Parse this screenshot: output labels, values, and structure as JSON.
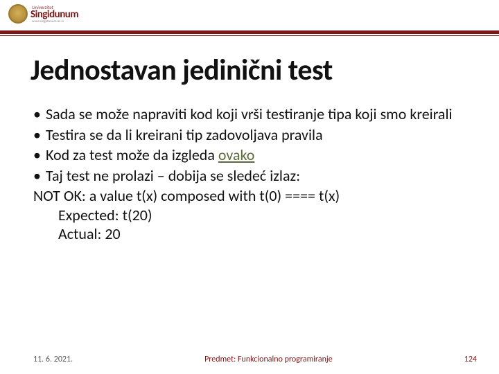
{
  "logo": {
    "university": "Univerzitet",
    "name": "Singidunum",
    "url": "www.singidunum.ac.rs"
  },
  "title": "Jednostavan jedinični test",
  "bullets": [
    {
      "text": "Sada se može napraviti kod koji vrši testiranje tipa koji smo kreirali",
      "hasLink": false
    },
    {
      "text": "Testira se da li kreirani tip zadovoljava pravila",
      "hasLink": false
    },
    {
      "textBefore": "Kod za test može da izgleda ",
      "linkText": "ovako",
      "textAfter": "",
      "hasLink": true
    },
    {
      "text": "Taj test ne prolazi – dobija se sledeć izlaz:",
      "hasLink": false
    }
  ],
  "output": {
    "line1": "NOT OK: a value t(x) composed with t(0) ==== t(x)",
    "line2": "Expected: t(20)",
    "line3": "Actual: 20"
  },
  "footer": {
    "date": "11. 6. 2021.",
    "subject": "Predmet: Funkcionalno programiranje",
    "page": "124"
  },
  "colors": {
    "rule": "#7a1818",
    "link": "#5a6a3a",
    "text": "#111111",
    "footer_subject": "#7a1818"
  }
}
